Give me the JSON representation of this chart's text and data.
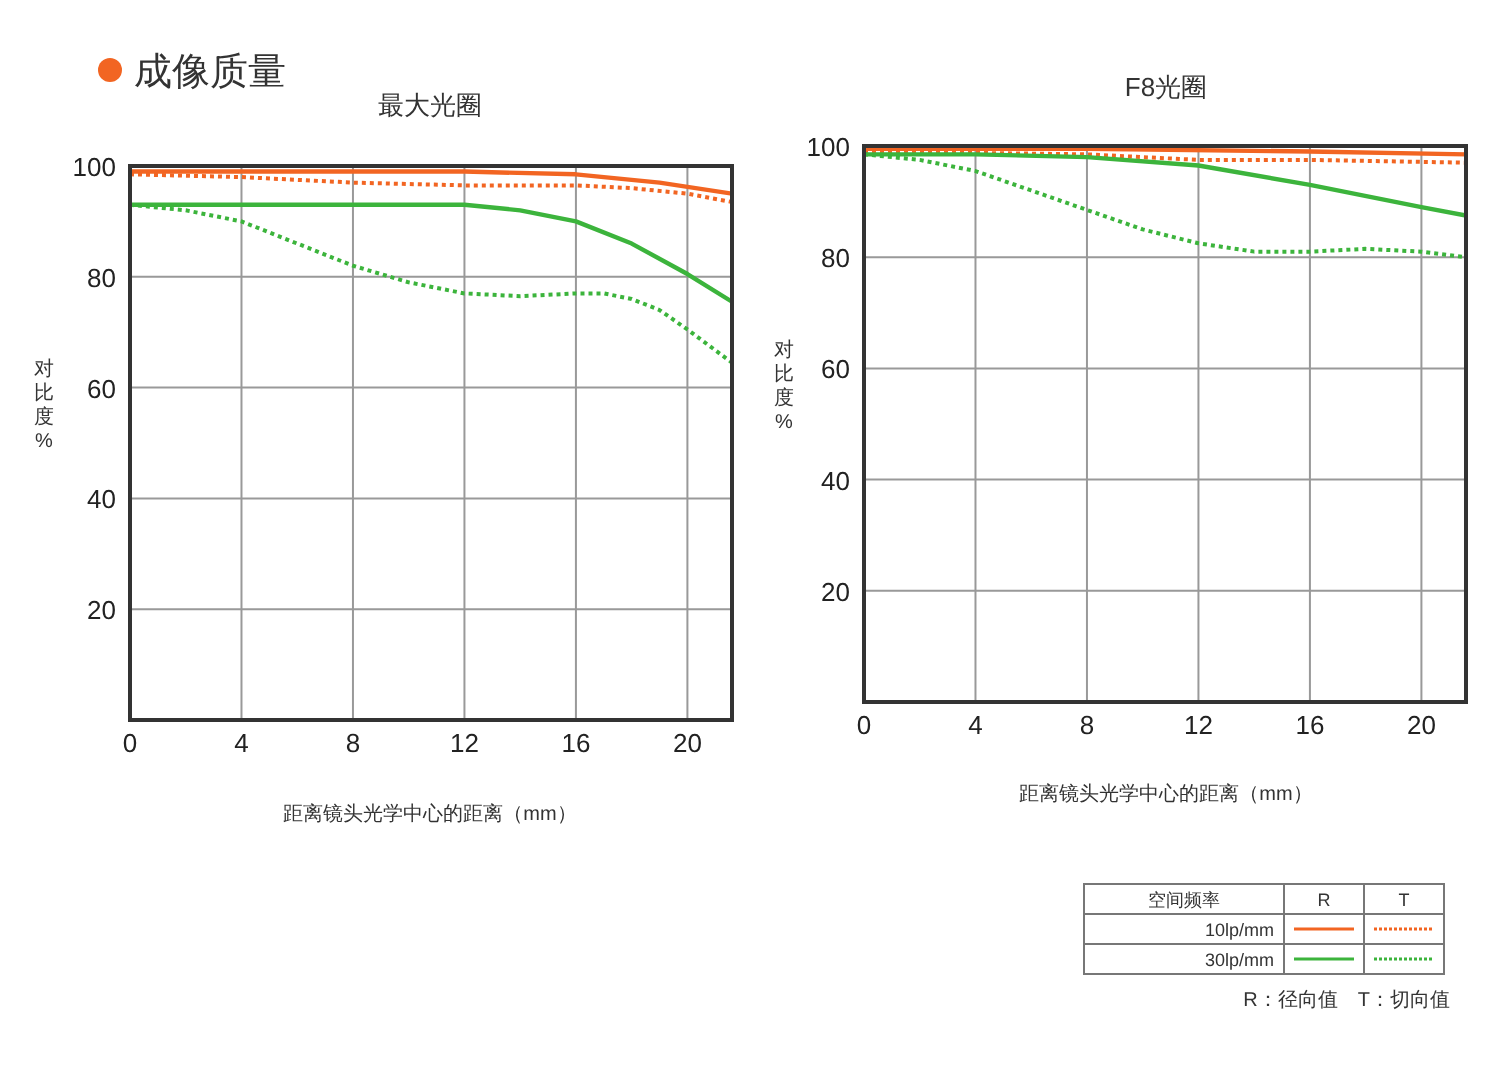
{
  "chart_data": [
    {
      "type": "line",
      "title": "成像质量",
      "subtitle": "最大光圈",
      "xlabel": "距离镜头光学中心的距离（mm）",
      "ylabel": "对比度%",
      "xlim": [
        0,
        21.6
      ],
      "ylim": [
        0,
        100
      ],
      "xticks": [
        0,
        4,
        8,
        12,
        16,
        20
      ],
      "yticks": [
        20,
        40,
        60,
        80,
        100
      ],
      "grid": true,
      "series": [
        {
          "color": "#f26522",
          "line_style": "solid",
          "x": [
            0,
            4,
            8,
            12,
            16,
            19,
            21.6
          ],
          "values": [
            99,
            99,
            99,
            99,
            98.5,
            97,
            95
          ]
        },
        {
          "color": "#f26522",
          "line_style": "dotted",
          "x": [
            0,
            4,
            8,
            12,
            16,
            18,
            20,
            21.6
          ],
          "values": [
            98.5,
            98,
            97,
            96.5,
            96.5,
            96,
            95,
            93.5
          ]
        },
        {
          "color": "#3cb43c",
          "line_style": "solid",
          "x": [
            0,
            4,
            8,
            12,
            14,
            16,
            18,
            20,
            21.6
          ],
          "values": [
            93,
            93,
            93,
            93,
            92,
            90,
            86,
            80.5,
            75.5
          ]
        },
        {
          "color": "#3cb43c",
          "line_style": "dotted",
          "x": [
            0,
            2,
            4,
            6,
            8,
            10,
            12,
            14,
            16,
            17,
            18,
            19,
            20,
            21.6
          ],
          "values": [
            93,
            92,
            90,
            86,
            82,
            79,
            77,
            76.5,
            77,
            77,
            76,
            74,
            70.5,
            64.5
          ]
        }
      ]
    },
    {
      "type": "line",
      "subtitle": "F8光圈",
      "xlabel": "距离镜头光学中心的距离（mm）",
      "ylabel": "对比度%",
      "xlim": [
        0,
        21.6
      ],
      "ylim": [
        0,
        100
      ],
      "xticks": [
        0,
        4,
        8,
        12,
        16,
        20
      ],
      "yticks": [
        20,
        40,
        60,
        80,
        100
      ],
      "grid": true,
      "legend": "bottom right",
      "legend_title": "空间频率",
      "annotations": [
        "R",
        "T",
        "R：径向值　T：切向值"
      ],
      "series": [
        {
          "name": "10lp/mm",
          "color": "#f26522",
          "line_style": "solid",
          "x": [
            0,
            8,
            16,
            21.6
          ],
          "values": [
            99.5,
            99.5,
            99,
            98.5
          ]
        },
        {
          "color": "#f26522",
          "line_style": "dotted",
          "x": [
            0,
            8,
            12,
            16,
            21.6
          ],
          "values": [
            99,
            98.5,
            97.5,
            97.5,
            97
          ]
        },
        {
          "name": "30lp/mm",
          "color": "#3cb43c",
          "line_style": "solid",
          "x": [
            0,
            4,
            8,
            12,
            16,
            20,
            21.6
          ],
          "values": [
            98.5,
            98.5,
            98,
            96.5,
            93,
            89,
            87.5
          ]
        },
        {
          "color": "#3cb43c",
          "line_style": "dotted",
          "x": [
            0,
            2,
            4,
            6,
            8,
            10,
            12,
            14,
            16,
            18,
            20,
            21.6
          ],
          "values": [
            98.5,
            97.5,
            95.5,
            92,
            88.5,
            85,
            82.5,
            81,
            81,
            81.5,
            81,
            80
          ]
        }
      ]
    }
  ]
}
